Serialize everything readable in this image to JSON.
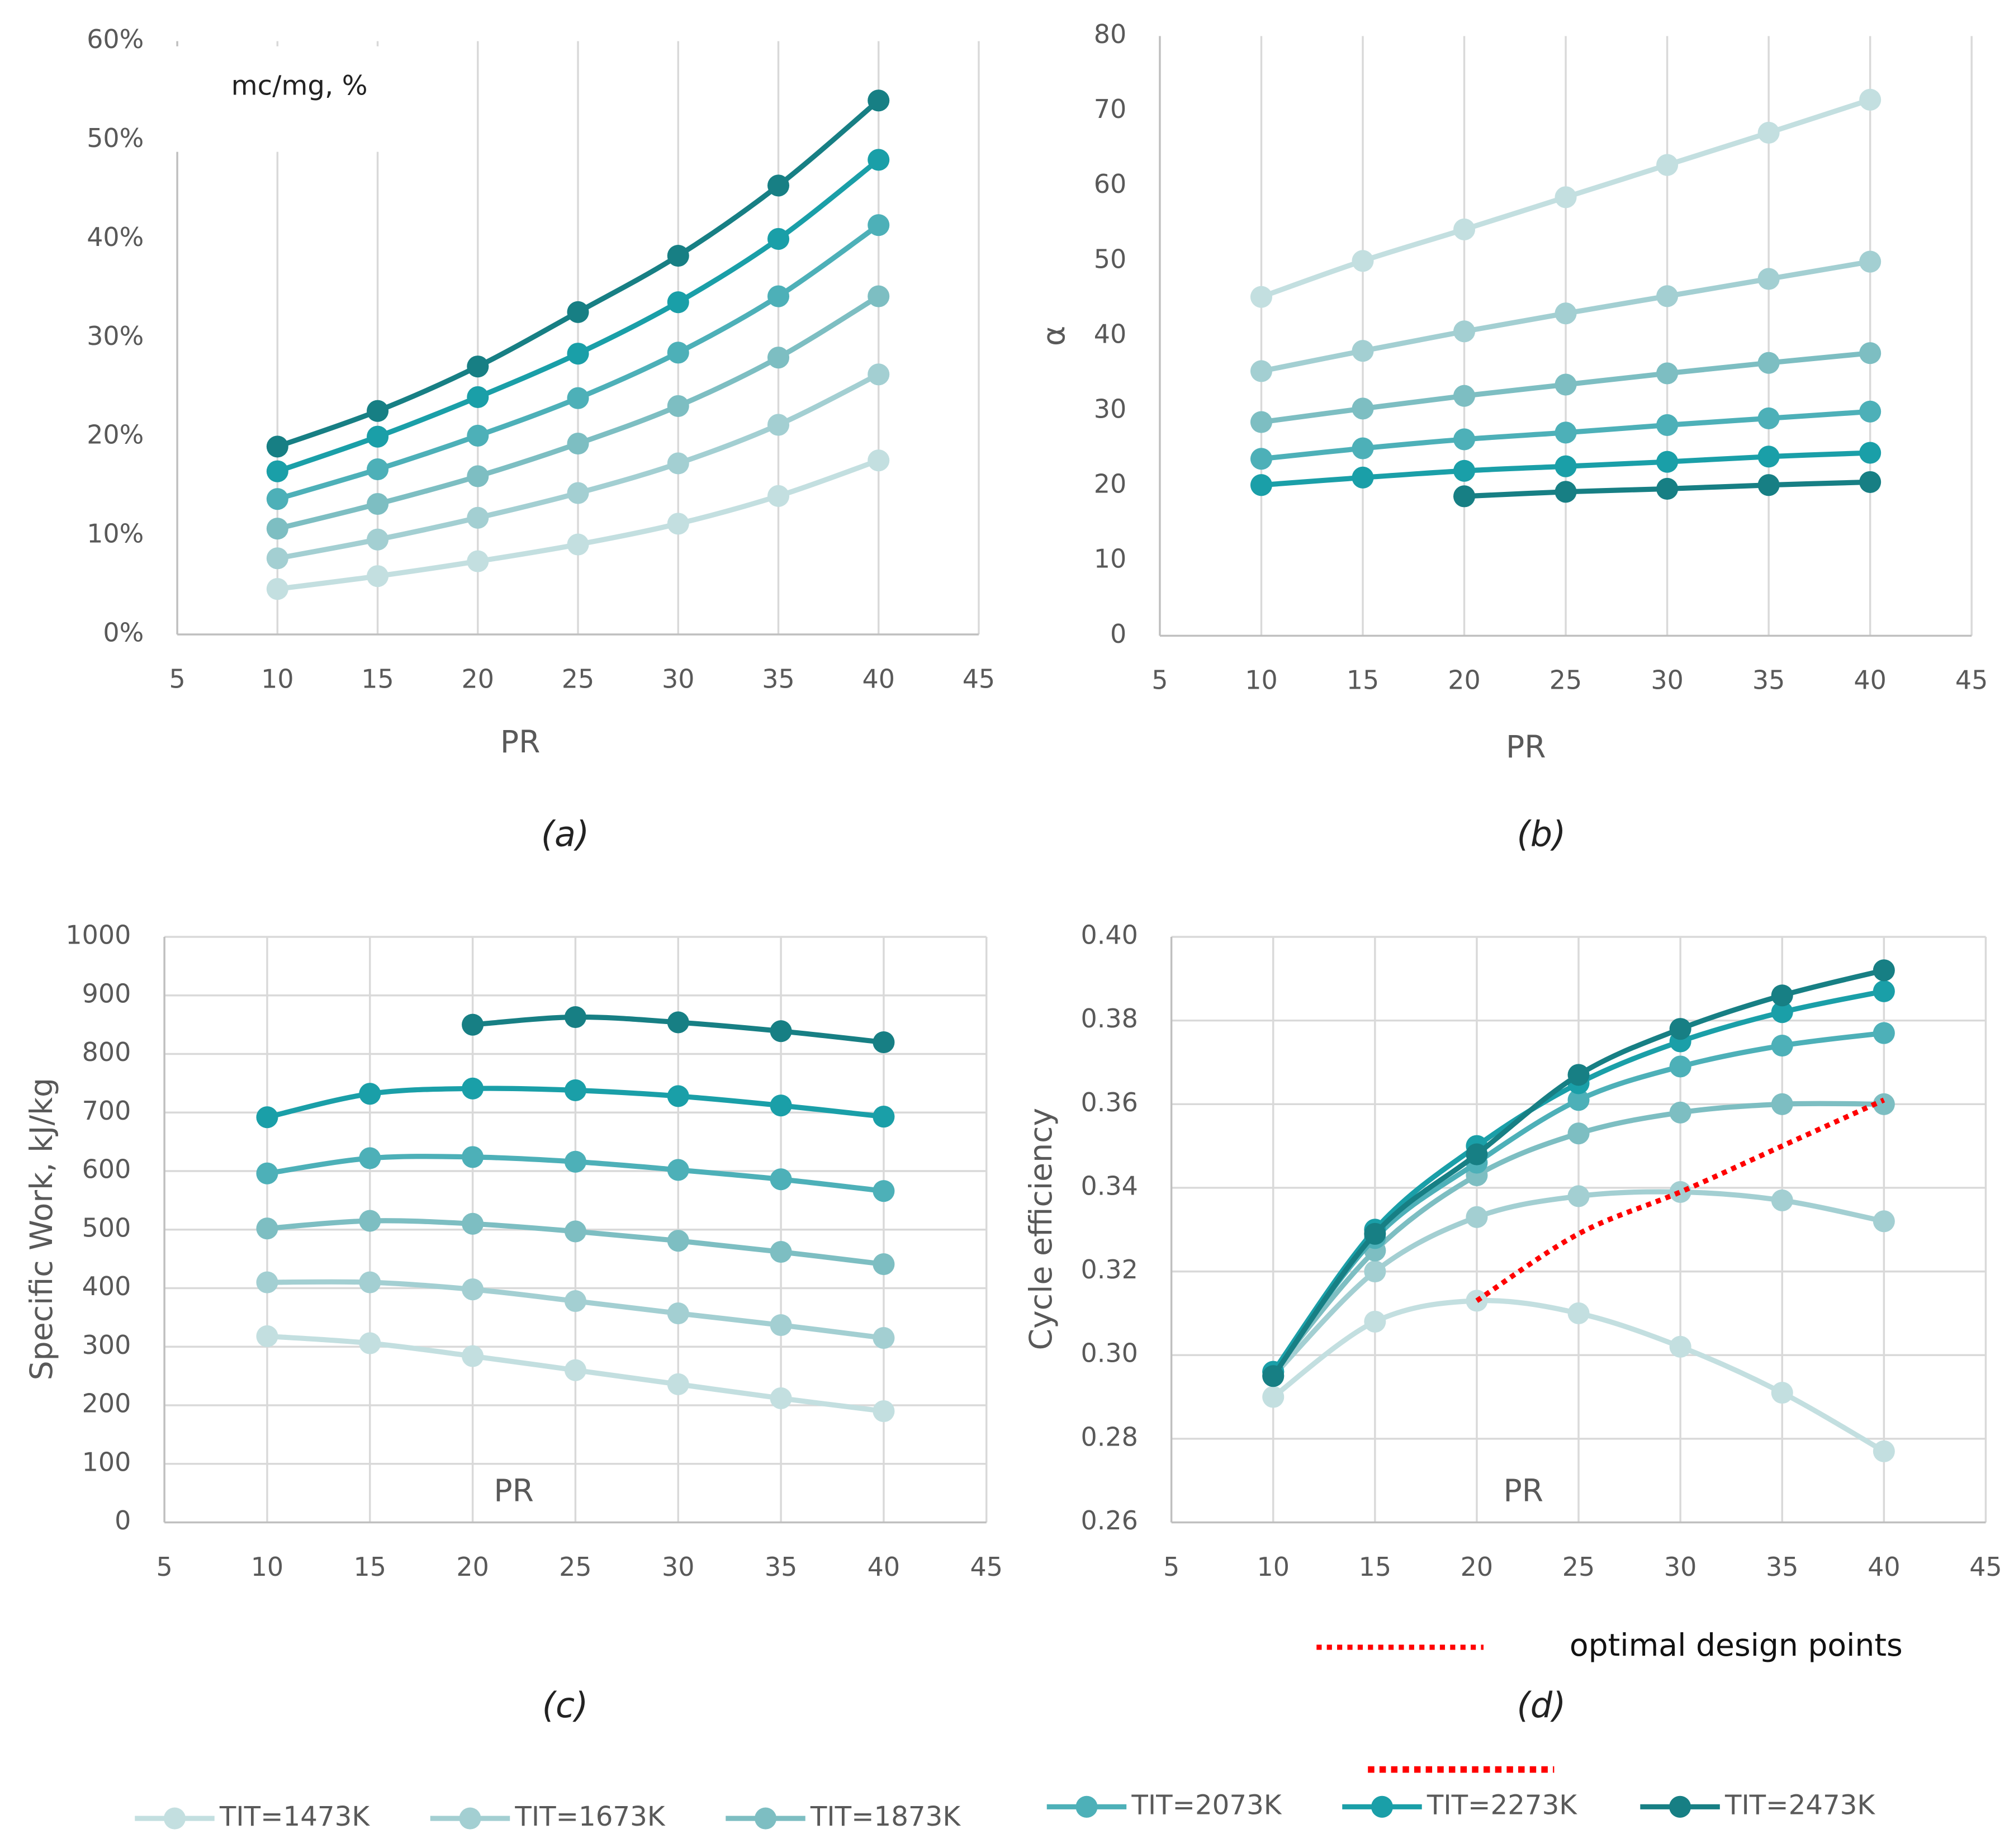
{
  "legend": [
    {
      "name": "TIT=1473K",
      "color": "#c3dfe0"
    },
    {
      "name": "TIT=1673K",
      "color": "#a3cfd2"
    },
    {
      "name": "TIT=1873K",
      "color": "#7dbec2"
    },
    {
      "name": "TIT=2073K",
      "color": "#4db0b8"
    },
    {
      "name": "TIT=2273K",
      "color": "#1a9fa8"
    },
    {
      "name": "TIT=2473K",
      "color": "#177f84"
    }
  ],
  "chart_data": [
    {
      "type": "line",
      "caption": "(a)",
      "xlabel": "PR",
      "annotation": "mc/mg, %",
      "xgrid": true,
      "ygrid": false,
      "x": [
        10,
        15,
        20,
        25,
        30,
        35,
        40
      ],
      "xlim": [
        5,
        45
      ],
      "xticks": [
        5,
        10,
        15,
        20,
        25,
        30,
        35,
        40,
        45
      ],
      "ylim": [
        0,
        60
      ],
      "yticks": [
        {
          "value": 0,
          "label": "0%"
        },
        {
          "value": 10,
          "label": "10%"
        },
        {
          "value": 20,
          "label": "20%"
        },
        {
          "value": 30,
          "label": "30%"
        },
        {
          "value": 40,
          "label": "40%"
        },
        {
          "value": 50,
          "label": "50%"
        },
        {
          "value": 60,
          "label": "60%"
        }
      ],
      "series": [
        {
          "values": [
            4.6,
            5.9,
            7.4,
            9.1,
            11.2,
            14.0,
            17.6
          ]
        },
        {
          "values": [
            7.7,
            9.6,
            11.8,
            14.3,
            17.3,
            21.2,
            26.3
          ]
        },
        {
          "values": [
            10.7,
            13.2,
            16.0,
            19.3,
            23.1,
            28.0,
            34.2
          ]
        },
        {
          "values": [
            13.7,
            16.7,
            20.1,
            23.9,
            28.5,
            34.2,
            41.4
          ]
        },
        {
          "values": [
            16.5,
            20.0,
            24.0,
            28.4,
            33.6,
            40.0,
            48.0
          ]
        },
        {
          "values": [
            19.0,
            22.6,
            27.1,
            32.6,
            38.3,
            45.4,
            54.0
          ]
        }
      ]
    },
    {
      "type": "line",
      "caption": "(b)",
      "xlabel": "PR",
      "ylabel": "α",
      "xgrid": true,
      "ygrid": false,
      "x": [
        10,
        15,
        20,
        25,
        30,
        35,
        40
      ],
      "xlim": [
        5,
        45
      ],
      "xticks": [
        5,
        10,
        15,
        20,
        25,
        30,
        35,
        40,
        45
      ],
      "ylim": [
        0,
        80
      ],
      "yticks": [
        0,
        10,
        20,
        30,
        40,
        50,
        60,
        70,
        80
      ],
      "series": [
        {
          "values": [
            45.2,
            50.0,
            54.2,
            58.5,
            62.8,
            67.1,
            71.5
          ]
        },
        {
          "values": [
            35.3,
            38.0,
            40.6,
            43.0,
            45.3,
            47.6,
            49.9
          ]
        },
        {
          "values": [
            28.5,
            30.3,
            32.0,
            33.5,
            35.0,
            36.4,
            37.7
          ]
        },
        {
          "values": [
            23.6,
            25.0,
            26.2,
            27.1,
            28.1,
            29.0,
            29.9
          ]
        },
        {
          "values": [
            20.1,
            21.1,
            22.0,
            22.6,
            23.2,
            23.9,
            24.4
          ]
        },
        {
          "values": [
            null,
            null,
            18.6,
            19.2,
            19.6,
            20.1,
            20.5
          ]
        }
      ]
    },
    {
      "type": "line",
      "caption": "(c)",
      "xlabel": "PR",
      "ylabel": "Specific Work, kJ/kg",
      "xgrid": true,
      "ygrid": true,
      "x": [
        10,
        15,
        20,
        25,
        30,
        35,
        40
      ],
      "xlim": [
        5,
        45
      ],
      "xticks": [
        5,
        10,
        15,
        20,
        25,
        30,
        35,
        40,
        45
      ],
      "ylim": [
        0,
        1000
      ],
      "yticks": [
        0,
        100,
        200,
        300,
        400,
        500,
        600,
        700,
        800,
        900,
        1000
      ],
      "series": [
        {
          "values": [
            318,
            306,
            284,
            260,
            236,
            212,
            190
          ]
        },
        {
          "values": [
            410,
            410,
            398,
            378,
            357,
            337,
            315
          ]
        },
        {
          "values": [
            502,
            515,
            510,
            497,
            481,
            462,
            441
          ]
        },
        {
          "values": [
            596,
            622,
            624,
            616,
            602,
            586,
            566
          ]
        },
        {
          "values": [
            692,
            732,
            741,
            738,
            728,
            712,
            693
          ]
        },
        {
          "values": [
            null,
            null,
            850,
            863,
            854,
            839,
            820
          ]
        }
      ]
    },
    {
      "type": "line",
      "caption": "(d)",
      "xlabel": "PR",
      "ylabel": "Cycle efficiency",
      "xgrid": true,
      "ygrid": true,
      "x": [
        10,
        15,
        20,
        25,
        30,
        35,
        40
      ],
      "xlim": [
        5,
        45
      ],
      "xticks": [
        5,
        10,
        15,
        20,
        25,
        30,
        35,
        40,
        45
      ],
      "ylim": [
        0.26,
        0.4
      ],
      "yticks": [
        {
          "value": 0.26,
          "label": "0.26"
        },
        {
          "value": 0.28,
          "label": "0.28"
        },
        {
          "value": 0.3,
          "label": "0.30"
        },
        {
          "value": 0.32,
          "label": "0.32"
        },
        {
          "value": 0.34,
          "label": "0.34"
        },
        {
          "value": 0.36,
          "label": "0.36"
        },
        {
          "value": 0.38,
          "label": "0.38"
        },
        {
          "value": 0.4,
          "label": "0.40"
        }
      ],
      "series": [
        {
          "values": [
            0.29,
            0.308,
            0.313,
            0.31,
            0.302,
            0.291,
            0.277
          ]
        },
        {
          "values": [
            0.295,
            0.32,
            0.333,
            0.338,
            0.339,
            0.337,
            0.332
          ]
        },
        {
          "values": [
            0.296,
            0.325,
            0.343,
            0.353,
            0.358,
            0.36,
            0.36
          ]
        },
        {
          "values": [
            0.296,
            0.328,
            0.346,
            0.361,
            0.369,
            0.374,
            0.377
          ]
        },
        {
          "values": [
            0.296,
            0.33,
            0.35,
            0.365,
            0.375,
            0.382,
            0.387
          ]
        },
        {
          "values": [
            0.295,
            0.329,
            0.348,
            0.367,
            0.378,
            0.386,
            0.392
          ]
        }
      ],
      "optimal": {
        "name": "optimal design points",
        "color": "#ff0000",
        "x": [
          20,
          25,
          30,
          35,
          40
        ],
        "values": [
          0.313,
          0.329,
          0.339,
          0.35,
          0.361
        ]
      }
    }
  ]
}
